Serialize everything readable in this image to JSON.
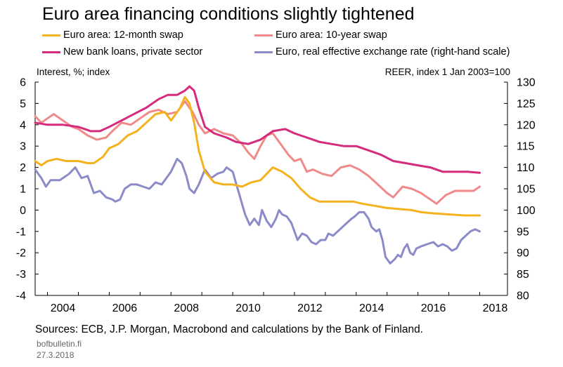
{
  "title": "Euro area financing conditions slightly tightened",
  "source": "Sources: ECB, J.P. Morgan, Macrobond and calculations by the Bank of Finland.",
  "footer": {
    "site": "bofbulletin.fi",
    "date": "27.3.2018"
  },
  "chart_data": {
    "type": "line",
    "title": "Euro area financing conditions slightly tightened",
    "ylabel_left": "Interest, %; index",
    "ylabel_right": "REER, index 1 Jan 2003=100",
    "xlim": [
      2003.6,
      2018.9
    ],
    "ylim_left": [
      -4,
      6
    ],
    "ylim_right": [
      80,
      130
    ],
    "x_ticks": [
      2004,
      2006,
      2008,
      2010,
      2012,
      2014,
      2016,
      2018
    ],
    "y_ticks_left": [
      -4,
      -3,
      -2,
      -1,
      0,
      1,
      2,
      3,
      4,
      5,
      6
    ],
    "y_ticks_right": [
      80,
      85,
      90,
      95,
      100,
      105,
      110,
      115,
      120,
      125,
      130
    ],
    "grid": false,
    "legend_position": "top",
    "series": [
      {
        "name": "Euro area: 12-month swap",
        "color": "#f5b21f",
        "axis": "left",
        "points": [
          [
            2003.6,
            2.3
          ],
          [
            2003.8,
            2.1
          ],
          [
            2004.0,
            2.3
          ],
          [
            2004.3,
            2.4
          ],
          [
            2004.6,
            2.3
          ],
          [
            2005.0,
            2.3
          ],
          [
            2005.3,
            2.2
          ],
          [
            2005.5,
            2.2
          ],
          [
            2005.8,
            2.5
          ],
          [
            2006.0,
            2.9
          ],
          [
            2006.3,
            3.1
          ],
          [
            2006.6,
            3.5
          ],
          [
            2006.9,
            3.7
          ],
          [
            2007.2,
            4.1
          ],
          [
            2007.5,
            4.5
          ],
          [
            2007.8,
            4.6
          ],
          [
            2008.0,
            4.2
          ],
          [
            2008.3,
            4.8
          ],
          [
            2008.45,
            5.3
          ],
          [
            2008.6,
            5.0
          ],
          [
            2008.75,
            4.1
          ],
          [
            2008.9,
            2.8
          ],
          [
            2009.1,
            1.8
          ],
          [
            2009.4,
            1.3
          ],
          [
            2009.7,
            1.2
          ],
          [
            2010.0,
            1.2
          ],
          [
            2010.3,
            1.1
          ],
          [
            2010.6,
            1.3
          ],
          [
            2010.9,
            1.4
          ],
          [
            2011.1,
            1.7
          ],
          [
            2011.3,
            2.0
          ],
          [
            2011.6,
            1.8
          ],
          [
            2011.9,
            1.5
          ],
          [
            2012.2,
            1.0
          ],
          [
            2012.5,
            0.6
          ],
          [
            2012.8,
            0.4
          ],
          [
            2013.1,
            0.4
          ],
          [
            2013.5,
            0.4
          ],
          [
            2013.9,
            0.4
          ],
          [
            2014.2,
            0.3
          ],
          [
            2014.6,
            0.2
          ],
          [
            2015.0,
            0.1
          ],
          [
            2015.4,
            0.05
          ],
          [
            2015.8,
            0.0
          ],
          [
            2016.1,
            -0.1
          ],
          [
            2016.5,
            -0.15
          ],
          [
            2017.0,
            -0.2
          ],
          [
            2017.5,
            -0.25
          ],
          [
            2018.0,
            -0.25
          ]
        ]
      },
      {
        "name": "Euro area: 10-year swap",
        "color": "#f08a8a",
        "axis": "left",
        "points": [
          [
            2003.6,
            4.4
          ],
          [
            2003.8,
            4.1
          ],
          [
            2004.0,
            4.3
          ],
          [
            2004.2,
            4.5
          ],
          [
            2004.5,
            4.2
          ],
          [
            2004.8,
            3.9
          ],
          [
            2005.0,
            3.8
          ],
          [
            2005.3,
            3.5
          ],
          [
            2005.6,
            3.3
          ],
          [
            2005.9,
            3.4
          ],
          [
            2006.1,
            3.7
          ],
          [
            2006.4,
            4.1
          ],
          [
            2006.7,
            4.0
          ],
          [
            2007.0,
            4.3
          ],
          [
            2007.3,
            4.6
          ],
          [
            2007.6,
            4.7
          ],
          [
            2007.9,
            4.5
          ],
          [
            2008.2,
            4.6
          ],
          [
            2008.45,
            5.1
          ],
          [
            2008.7,
            4.6
          ],
          [
            2008.9,
            4.0
          ],
          [
            2009.1,
            3.6
          ],
          [
            2009.4,
            3.8
          ],
          [
            2009.7,
            3.6
          ],
          [
            2010.0,
            3.5
          ],
          [
            2010.3,
            3.1
          ],
          [
            2010.5,
            2.7
          ],
          [
            2010.7,
            2.4
          ],
          [
            2010.9,
            3.0
          ],
          [
            2011.1,
            3.5
          ],
          [
            2011.3,
            3.6
          ],
          [
            2011.5,
            3.2
          ],
          [
            2011.8,
            2.6
          ],
          [
            2012.0,
            2.3
          ],
          [
            2012.2,
            2.4
          ],
          [
            2012.4,
            1.8
          ],
          [
            2012.6,
            1.9
          ],
          [
            2012.9,
            1.7
          ],
          [
            2013.2,
            1.6
          ],
          [
            2013.5,
            2.0
          ],
          [
            2013.8,
            2.1
          ],
          [
            2014.1,
            1.9
          ],
          [
            2014.4,
            1.6
          ],
          [
            2014.7,
            1.2
          ],
          [
            2015.0,
            0.8
          ],
          [
            2015.2,
            0.6
          ],
          [
            2015.5,
            1.1
          ],
          [
            2015.8,
            1.0
          ],
          [
            2016.1,
            0.8
          ],
          [
            2016.4,
            0.5
          ],
          [
            2016.6,
            0.3
          ],
          [
            2016.9,
            0.7
          ],
          [
            2017.2,
            0.9
          ],
          [
            2017.5,
            0.9
          ],
          [
            2017.8,
            0.9
          ],
          [
            2018.0,
            1.1
          ]
        ]
      },
      {
        "name": "New bank loans, private sector",
        "color": "#d62a7c",
        "axis": "left",
        "points": [
          [
            2003.6,
            4.1
          ],
          [
            2004.0,
            4.0
          ],
          [
            2004.5,
            4.0
          ],
          [
            2005.0,
            3.9
          ],
          [
            2005.4,
            3.7
          ],
          [
            2005.7,
            3.7
          ],
          [
            2006.0,
            3.9
          ],
          [
            2006.4,
            4.2
          ],
          [
            2006.8,
            4.5
          ],
          [
            2007.2,
            4.8
          ],
          [
            2007.6,
            5.2
          ],
          [
            2007.9,
            5.4
          ],
          [
            2008.2,
            5.4
          ],
          [
            2008.45,
            5.6
          ],
          [
            2008.6,
            5.8
          ],
          [
            2008.75,
            5.6
          ],
          [
            2008.9,
            4.8
          ],
          [
            2009.1,
            3.9
          ],
          [
            2009.4,
            3.6
          ],
          [
            2009.8,
            3.4
          ],
          [
            2010.1,
            3.2
          ],
          [
            2010.5,
            3.1
          ],
          [
            2010.9,
            3.3
          ],
          [
            2011.3,
            3.7
          ],
          [
            2011.7,
            3.8
          ],
          [
            2012.0,
            3.6
          ],
          [
            2012.4,
            3.4
          ],
          [
            2012.8,
            3.2
          ],
          [
            2013.2,
            3.1
          ],
          [
            2013.6,
            3.0
          ],
          [
            2014.0,
            3.0
          ],
          [
            2014.4,
            2.8
          ],
          [
            2014.8,
            2.6
          ],
          [
            2015.2,
            2.3
          ],
          [
            2015.6,
            2.2
          ],
          [
            2016.0,
            2.1
          ],
          [
            2016.4,
            2.0
          ],
          [
            2016.8,
            1.8
          ],
          [
            2017.2,
            1.8
          ],
          [
            2017.6,
            1.8
          ],
          [
            2018.0,
            1.75
          ]
        ]
      },
      {
        "name": "Euro, real effective exchange rate (right-hand scale)",
        "color": "#8b8bc8",
        "axis": "right",
        "points": [
          [
            2003.6,
            109.5
          ],
          [
            2003.8,
            107.5
          ],
          [
            2003.95,
            105.5
          ],
          [
            2004.1,
            107
          ],
          [
            2004.4,
            107
          ],
          [
            2004.7,
            108.5
          ],
          [
            2004.9,
            110
          ],
          [
            2005.1,
            107.5
          ],
          [
            2005.3,
            108
          ],
          [
            2005.5,
            104
          ],
          [
            2005.7,
            104.5
          ],
          [
            2005.9,
            103
          ],
          [
            2006.1,
            102.5
          ],
          [
            2006.2,
            102
          ],
          [
            2006.35,
            102.5
          ],
          [
            2006.5,
            105
          ],
          [
            2006.7,
            106
          ],
          [
            2006.9,
            106
          ],
          [
            2007.1,
            105.5
          ],
          [
            2007.3,
            105
          ],
          [
            2007.5,
            106.5
          ],
          [
            2007.7,
            106
          ],
          [
            2007.9,
            108
          ],
          [
            2008.0,
            109
          ],
          [
            2008.2,
            112
          ],
          [
            2008.35,
            111
          ],
          [
            2008.5,
            108
          ],
          [
            2008.6,
            105
          ],
          [
            2008.75,
            104
          ],
          [
            2008.9,
            106
          ],
          [
            2009.1,
            109.5
          ],
          [
            2009.3,
            107.5
          ],
          [
            2009.5,
            108.5
          ],
          [
            2009.7,
            109
          ],
          [
            2009.8,
            110
          ],
          [
            2010.0,
            109
          ],
          [
            2010.2,
            104
          ],
          [
            2010.4,
            99
          ],
          [
            2010.55,
            96.5
          ],
          [
            2010.7,
            98
          ],
          [
            2010.85,
            96.5
          ],
          [
            2010.95,
            100
          ],
          [
            2011.1,
            97.5
          ],
          [
            2011.25,
            96
          ],
          [
            2011.4,
            98
          ],
          [
            2011.5,
            100
          ],
          [
            2011.6,
            99
          ],
          [
            2011.75,
            98.5
          ],
          [
            2011.9,
            97
          ],
          [
            2012.0,
            95
          ],
          [
            2012.1,
            93
          ],
          [
            2012.25,
            94.5
          ],
          [
            2012.4,
            94
          ],
          [
            2012.55,
            92.5
          ],
          [
            2012.7,
            92
          ],
          [
            2012.85,
            93
          ],
          [
            2013.0,
            93
          ],
          [
            2013.1,
            94.5
          ],
          [
            2013.25,
            94
          ],
          [
            2013.4,
            95
          ],
          [
            2013.55,
            96
          ],
          [
            2013.7,
            97
          ],
          [
            2013.85,
            98
          ],
          [
            2013.95,
            98.5
          ],
          [
            2014.1,
            99.5
          ],
          [
            2014.25,
            99.5
          ],
          [
            2014.4,
            98
          ],
          [
            2014.5,
            96
          ],
          [
            2014.65,
            95
          ],
          [
            2014.75,
            95.5
          ],
          [
            2014.85,
            93
          ],
          [
            2014.95,
            89
          ],
          [
            2015.1,
            87.5
          ],
          [
            2015.25,
            88.5
          ],
          [
            2015.35,
            89.5
          ],
          [
            2015.45,
            89
          ],
          [
            2015.55,
            91
          ],
          [
            2015.65,
            92
          ],
          [
            2015.75,
            90
          ],
          [
            2015.85,
            89.5
          ],
          [
            2015.95,
            91
          ],
          [
            2016.1,
            91.5
          ],
          [
            2016.3,
            92
          ],
          [
            2016.5,
            92.5
          ],
          [
            2016.65,
            91.5
          ],
          [
            2016.8,
            92
          ],
          [
            2016.95,
            91.5
          ],
          [
            2017.1,
            90.5
          ],
          [
            2017.25,
            91
          ],
          [
            2017.4,
            93
          ],
          [
            2017.55,
            94
          ],
          [
            2017.7,
            95
          ],
          [
            2017.85,
            95.5
          ],
          [
            2018.0,
            95
          ]
        ]
      }
    ]
  }
}
